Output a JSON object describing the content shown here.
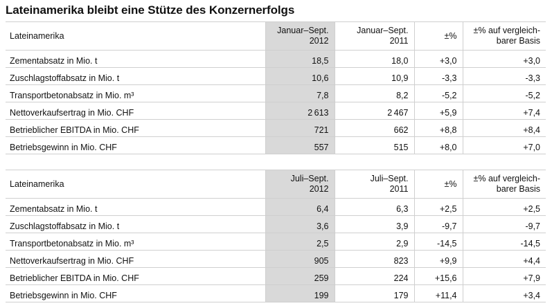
{
  "title": "Lateinamerika bleibt eine Stütze des Konzernerfolgs",
  "tables": [
    {
      "header": {
        "label": "Lateinamerika",
        "current_l1": "Januar–Sept.",
        "current_l2": "2012",
        "previous_l1": "Januar–Sept.",
        "previous_l2": "2011",
        "change": "±%",
        "base_l1": "±% auf vergleich-",
        "base_l2": "barer Basis"
      },
      "rows": [
        {
          "label": "Zementabsatz in Mio. t",
          "current": "18,5",
          "previous": "18,0",
          "change": "+3,0",
          "base": "+3,0"
        },
        {
          "label": "Zuschlagstoffabsatz in Mio. t",
          "current": "10,6",
          "previous": "10,9",
          "change": "-3,3",
          "base": "-3,3"
        },
        {
          "label": "Transportbetonabsatz in Mio. m³",
          "current": "7,8",
          "previous": "8,2",
          "change": "-5,2",
          "base": "-5,2"
        },
        {
          "label": "Nettoverkaufsertrag in Mio. CHF",
          "current": "2 613",
          "previous": "2 467",
          "change": "+5,9",
          "base": "+7,4"
        },
        {
          "label": "Betrieblicher EBITDA in Mio. CHF",
          "current": "721",
          "previous": "662",
          "change": "+8,8",
          "base": "+8,4"
        },
        {
          "label": "Betriebsgewinn in Mio. CHF",
          "current": "557",
          "previous": "515",
          "change": "+8,0",
          "base": "+7,0"
        }
      ]
    },
    {
      "header": {
        "label": "Lateinamerika",
        "current_l1": "Juli–Sept.",
        "current_l2": "2012",
        "previous_l1": "Juli–Sept.",
        "previous_l2": "2011",
        "change": "±%",
        "base_l1": "±% auf vergleich-",
        "base_l2": "barer Basis"
      },
      "rows": [
        {
          "label": "Zementabsatz in Mio. t",
          "current": "6,4",
          "previous": "6,3",
          "change": "+2,5",
          "base": "+2,5"
        },
        {
          "label": "Zuschlagstoffabsatz in Mio. t",
          "current": "3,6",
          "previous": "3,9",
          "change": "-9,7",
          "base": "-9,7"
        },
        {
          "label": "Transportbetonabsatz in Mio. m³",
          "current": "2,5",
          "previous": "2,9",
          "change": "-14,5",
          "base": "-14,5"
        },
        {
          "label": "Nettoverkaufsertrag in Mio. CHF",
          "current": "905",
          "previous": "823",
          "change": "+9,9",
          "base": "+4,4"
        },
        {
          "label": "Betrieblicher EBITDA in Mio. CHF",
          "current": "259",
          "previous": "224",
          "change": "+15,6",
          "base": "+7,9"
        },
        {
          "label": "Betriebsgewinn in Mio. CHF",
          "current": "199",
          "previous": "179",
          "change": "+11,4",
          "base": "+3,4"
        }
      ]
    }
  ]
}
